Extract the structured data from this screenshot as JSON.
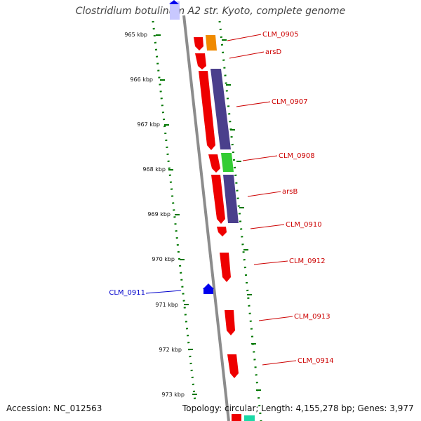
{
  "title": "Clostridium botulinum A2 str. Kyoto, complete genome",
  "footer": {
    "accession": "Accession: NC_012563",
    "stats": "Topology: circular; Length: 4,155,278 bp; Genes: 3,977"
  },
  "kbp_labels": [
    "965 kbp",
    "966 kbp",
    "967 kbp",
    "968 kbp",
    "969 kbp",
    "970 kbp",
    "971 kbp",
    "972 kbp",
    "973 kbp"
  ],
  "gene_labels": [
    {
      "id": "CLM_0905",
      "text": "CLM_0905",
      "strand": "plus"
    },
    {
      "id": "arsD",
      "text": "arsD",
      "strand": "plus"
    },
    {
      "id": "CLM_0907",
      "text": "CLM_0907",
      "strand": "plus"
    },
    {
      "id": "CLM_0908",
      "text": "CLM_0908",
      "strand": "plus"
    },
    {
      "id": "arsB",
      "text": "arsB",
      "strand": "plus"
    },
    {
      "id": "CLM_0910",
      "text": "CLM_0910",
      "strand": "plus"
    },
    {
      "id": "CLM_0912",
      "text": "CLM_0912",
      "strand": "plus"
    },
    {
      "id": "CLM_0911",
      "text": "CLM_0911",
      "strand": "minus"
    },
    {
      "id": "CLM_0913",
      "text": "CLM_0913",
      "strand": "plus"
    },
    {
      "id": "CLM_0914",
      "text": "CLM_0914",
      "strand": "plus"
    }
  ],
  "colors": {
    "gene_plus": "#ee0000",
    "gene_minus": "#0000ee",
    "ruler": "#007700",
    "backbone": "#8c8c8c",
    "orange": "#f08a00",
    "purple": "#4a3f8c",
    "green": "#33cc33",
    "teal": "#19d9a6",
    "label_plus": "#cc0000",
    "label_minus": "#0000cc"
  }
}
